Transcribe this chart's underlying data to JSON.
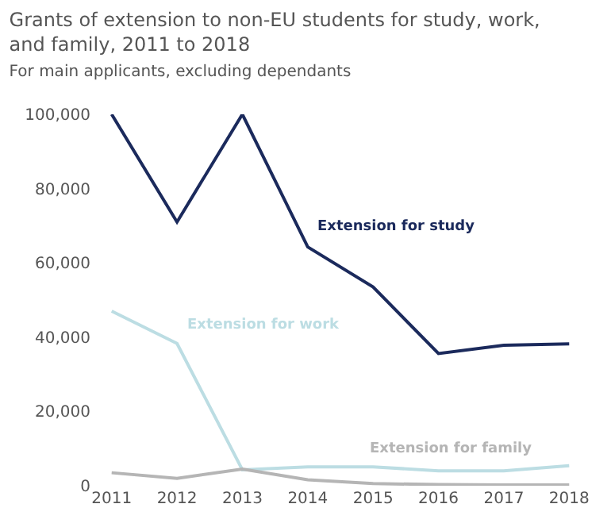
{
  "chart_data": {
    "type": "line",
    "title": "Grants of extension to non-EU students for study, work, and family, 2011 to 2018",
    "subtitle": "For main applicants, excluding dependants",
    "categories": [
      "2011",
      "2012",
      "2013",
      "2014",
      "2015",
      "2016",
      "2017",
      "2018"
    ],
    "series": [
      {
        "name": "Extension for study",
        "color": "#1b2a5c",
        "values": [
          100000,
          71000,
          100000,
          64300,
          53500,
          35600,
          37800,
          38200
        ]
      },
      {
        "name": "Extension for work",
        "color": "#bcdde3",
        "values": [
          47000,
          38300,
          4300,
          5100,
          5100,
          4000,
          4000,
          5400
        ]
      },
      {
        "name": "Extension for family",
        "color": "#b5b5b5",
        "values": [
          3500,
          2000,
          4500,
          1600,
          600,
          300,
          200,
          200
        ]
      }
    ],
    "ylim": [
      0,
      100000
    ],
    "yticks": [
      {
        "value": 0,
        "label": "0"
      },
      {
        "value": 20000,
        "label": "20,000"
      },
      {
        "value": 40000,
        "label": "40,000"
      },
      {
        "value": 60000,
        "label": "60,000"
      },
      {
        "value": 80000,
        "label": "80,000"
      },
      {
        "value": 100000,
        "label": "100,000"
      }
    ],
    "grid": false,
    "legend": false
  }
}
